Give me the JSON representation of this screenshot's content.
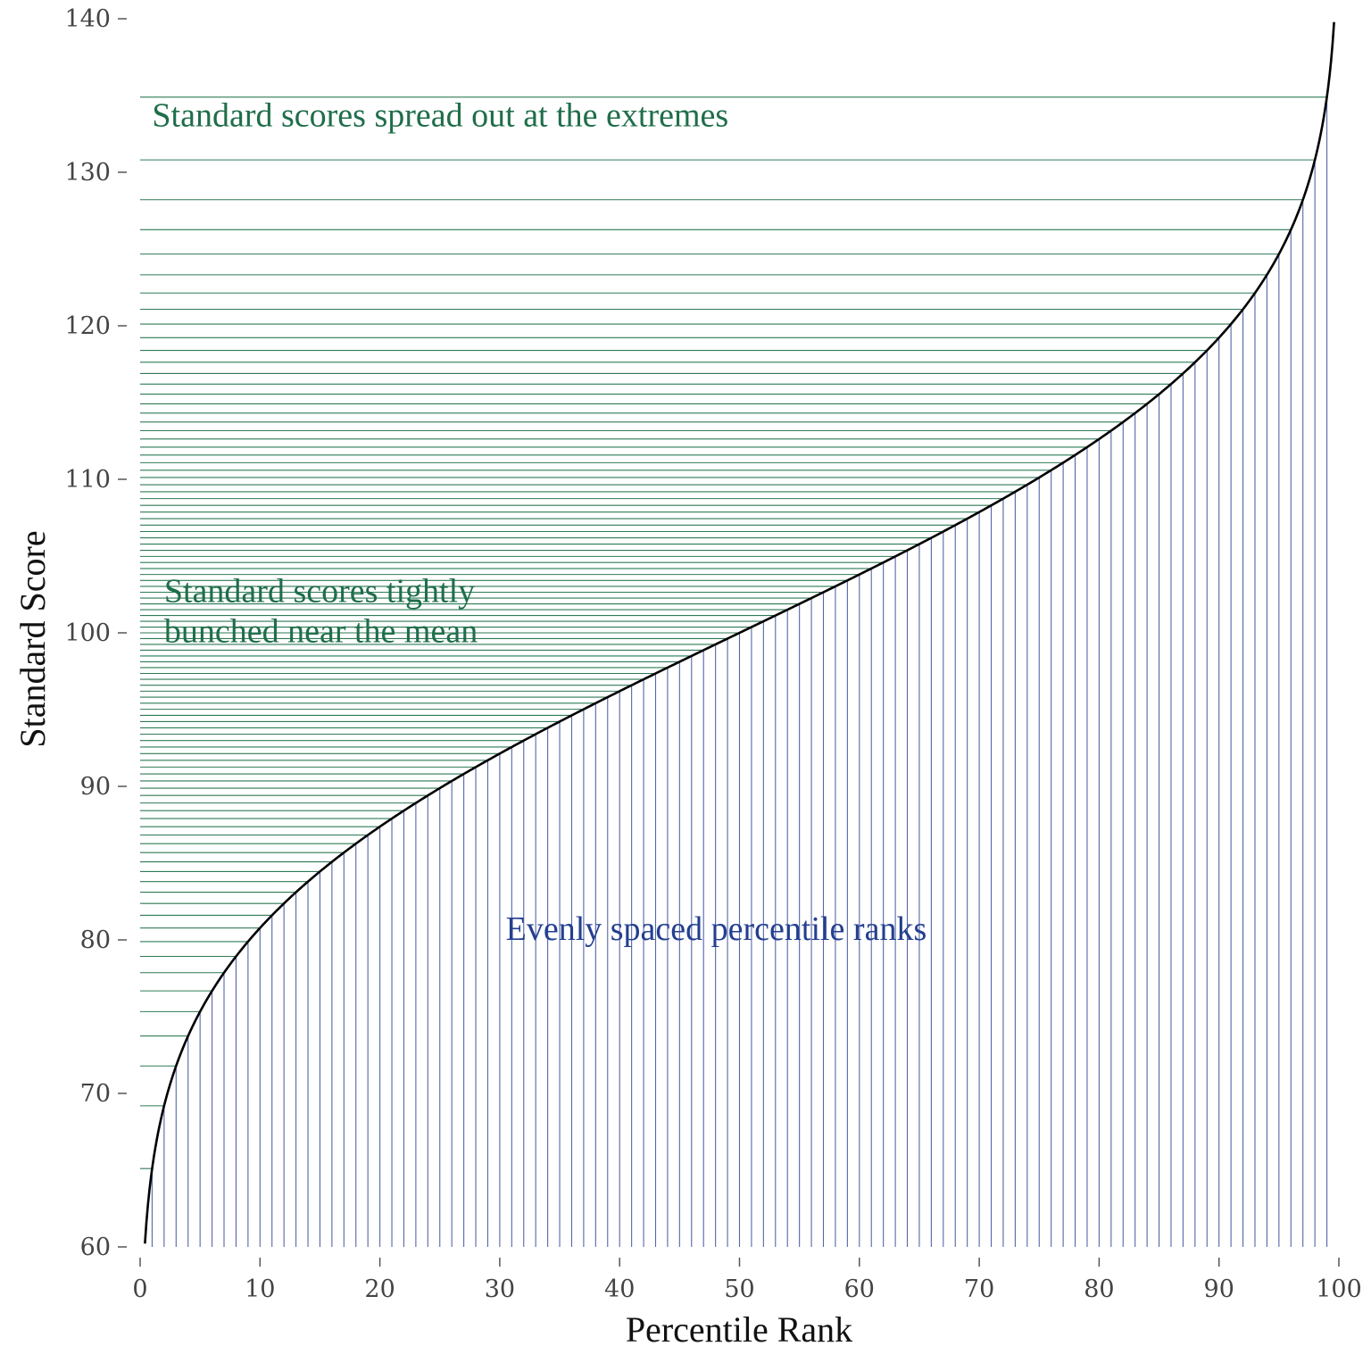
{
  "chart_data": {
    "type": "line",
    "title": "",
    "xlabel": "Percentile Rank",
    "ylabel": "Standard Score",
    "xlim": [
      0,
      100
    ],
    "ylim": [
      60,
      140
    ],
    "x_ticks": [
      0,
      10,
      20,
      30,
      40,
      50,
      60,
      70,
      80,
      90,
      100
    ],
    "y_ticks": [
      60,
      70,
      80,
      90,
      100,
      110,
      120,
      130,
      140
    ],
    "grid": false,
    "series": [
      {
        "curve": "standard score = 100 + 15 × z(percentile)",
        "mean": 100,
        "sd": 15,
        "x_range": [
          0.4,
          99.6
        ],
        "color": "#000000"
      }
    ],
    "percentile_ranks": [
      1,
      2,
      3,
      4,
      5,
      6,
      7,
      8,
      9,
      10,
      11,
      12,
      13,
      14,
      15,
      16,
      17,
      18,
      19,
      20,
      21,
      22,
      23,
      24,
      25,
      26,
      27,
      28,
      29,
      30,
      31,
      32,
      33,
      34,
      35,
      36,
      37,
      38,
      39,
      40,
      41,
      42,
      43,
      44,
      45,
      46,
      47,
      48,
      49,
      50,
      51,
      52,
      53,
      54,
      55,
      56,
      57,
      58,
      59,
      60,
      61,
      62,
      63,
      64,
      65,
      66,
      67,
      68,
      69,
      70,
      71,
      72,
      73,
      74,
      75,
      76,
      77,
      78,
      79,
      80,
      81,
      82,
      83,
      84,
      85,
      86,
      87,
      88,
      89,
      90,
      91,
      92,
      93,
      94,
      95,
      96,
      97,
      98,
      99
    ],
    "colors": {
      "vertical_lines": "#5566a8",
      "horizontal_lines": "#2f7a57",
      "curve": "#000000"
    },
    "annotations": [
      {
        "id": "extremes",
        "text": "Standard scores spread out at the extremes",
        "x": 1,
        "y": 133,
        "color": "#1f6e4a"
      },
      {
        "id": "mean-line1",
        "text": "Standard scores tightly",
        "x": 2,
        "y": 102,
        "color": "#1f6e4a"
      },
      {
        "id": "mean-line2",
        "text": "bunched near the mean",
        "x": 2,
        "y": 99.4,
        "color": "#1f6e4a"
      },
      {
        "id": "evenly",
        "text": "Evenly spaced percentile ranks",
        "x": 30.5,
        "y": 80,
        "color": "#243f8f"
      }
    ]
  }
}
